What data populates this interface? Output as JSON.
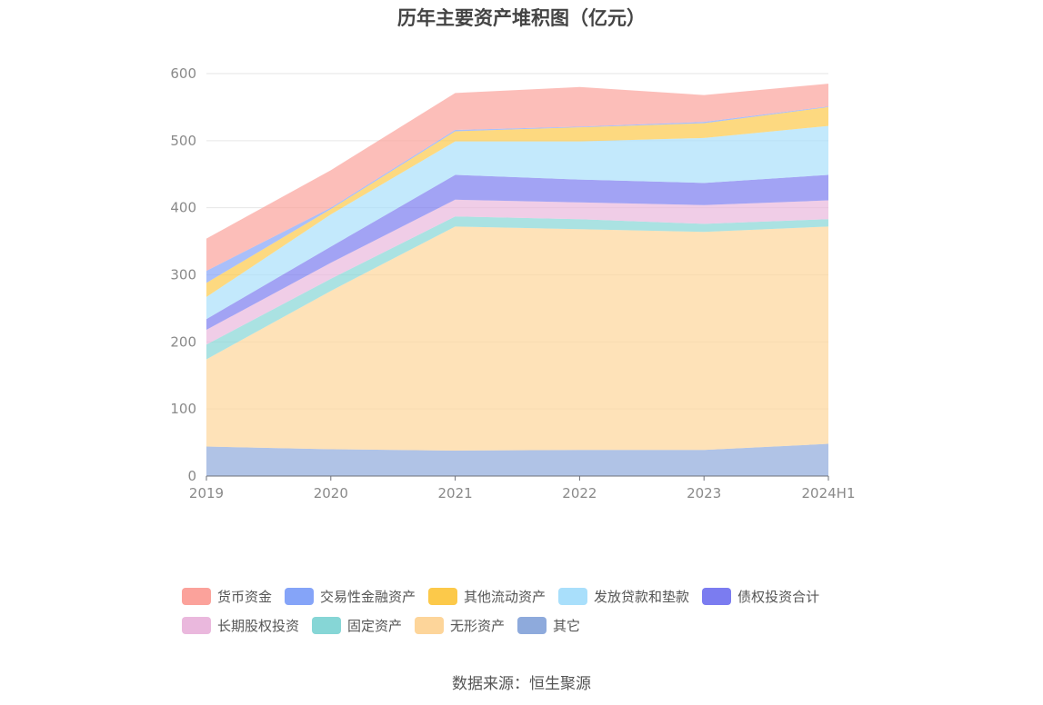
{
  "chart_data": {
    "type": "area",
    "stacked": true,
    "title": "历年主要资产堆积图（亿元）",
    "xlabel": "",
    "ylabel": "",
    "categories": [
      "2019",
      "2020",
      "2021",
      "2022",
      "2023",
      "2024H1"
    ],
    "ylim": [
      0,
      600
    ],
    "yticks": [
      "0",
      "100",
      "200",
      "300",
      "400",
      "500",
      "600"
    ],
    "grid": true,
    "legend_position": "bottom",
    "series": [
      {
        "name": "其它",
        "color": "#8eaadc",
        "values": [
          44,
          40,
          38,
          39,
          39,
          48
        ]
      },
      {
        "name": "无形资产",
        "color": "#fdd59a",
        "values": [
          130,
          236,
          334,
          329,
          325,
          324
        ]
      },
      {
        "name": "固定资产",
        "color": "#86d6d6",
        "values": [
          22,
          18,
          15,
          15,
          12,
          11
        ]
      },
      {
        "name": "长期股权投资",
        "color": "#eab8dd",
        "values": [
          22,
          24,
          25,
          25,
          28,
          28
        ]
      },
      {
        "name": "债权投资合计",
        "color": "#7b7cf0",
        "values": [
          16,
          24,
          37,
          34,
          33,
          38
        ]
      },
      {
        "name": "发放贷款和垫款",
        "color": "#a9dffb",
        "values": [
          33,
          48,
          50,
          57,
          67,
          73
        ]
      },
      {
        "name": "其他流动资产",
        "color": "#fcc94a",
        "values": [
          21,
          8,
          15,
          21,
          22,
          28
        ]
      },
      {
        "name": "交易性金融资产",
        "color": "#85a4f8",
        "values": [
          18,
          2,
          2,
          1,
          2,
          1
        ]
      },
      {
        "name": "货币资金",
        "color": "#fba29b",
        "values": [
          48,
          56,
          55,
          59,
          40,
          34
        ]
      }
    ]
  },
  "legend": {
    "row1": [
      "货币资金",
      "交易性金融资产",
      "其他流动资产",
      "发放贷款和垫款",
      "债权投资合计"
    ],
    "row2": [
      "长期股权投资",
      "固定资产",
      "无形资产",
      "其它"
    ]
  },
  "source_text": "数据来源：恒生聚源"
}
